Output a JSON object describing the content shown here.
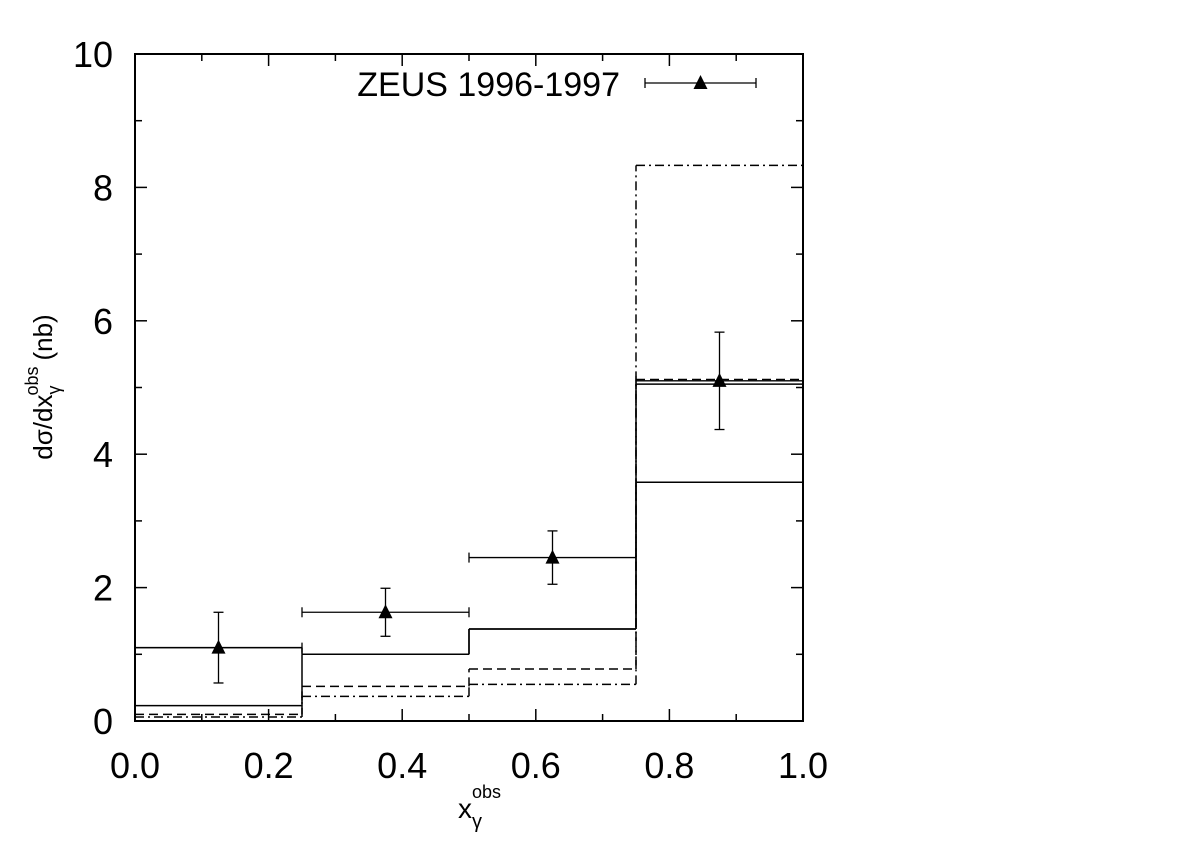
{
  "chart_data": {
    "type": "scatter",
    "x_label": {
      "main": "x",
      "sub": "γ",
      "sup": "obs"
    },
    "y_label": {
      "main": "dσ/dx",
      "sub": "γ",
      "sup": "obs",
      "unit": "(nb)"
    },
    "xlim": [
      0,
      1
    ],
    "ylim": [
      0,
      10
    ],
    "xticks": [
      {
        "value": 0,
        "label": "0.0"
      },
      {
        "value": 0.2,
        "label": "0.2"
      },
      {
        "value": 0.4,
        "label": "0.4"
      },
      {
        "value": 0.6,
        "label": "0.6"
      },
      {
        "value": 0.8,
        "label": "0.8"
      },
      {
        "value": 1,
        "label": "1.0"
      }
    ],
    "xminor": [
      0.1,
      0.3,
      0.5,
      0.7,
      0.9
    ],
    "yticks": [
      0,
      2,
      4,
      6,
      8,
      10
    ],
    "yminor": [
      1,
      3,
      5,
      7,
      9
    ],
    "legend": "top-right",
    "x": [
      0.125,
      0.375,
      0.625,
      0.875
    ],
    "series": [
      {
        "name": "ZEUS 1996-1997",
        "color": "#000000",
        "marker": "triangle",
        "values": [
          1.1,
          1.63,
          2.45,
          5.1
        ],
        "yerr": [
          0.53,
          0.36,
          0.4,
          0.73
        ],
        "xerr": [
          0.125,
          0.125,
          0.125,
          0.125
        ]
      }
    ],
    "bins": [
      0,
      0.25,
      0.5,
      0.75,
      1
    ],
    "histograms": [
      {
        "color": "#000000",
        "dash": "solid",
        "values": [
          1.1,
          1.0,
          1.38,
          3.58
        ]
      },
      {
        "color": "#000000",
        "dash": "solid",
        "values": [
          0.23,
          1.0,
          1.38,
          5.05
        ]
      },
      {
        "color": "#000000",
        "dash": "dashed",
        "values": [
          0.1,
          0.52,
          0.78,
          5.12
        ]
      },
      {
        "color": "#000000",
        "dash": "dashdot",
        "values": [
          0.06,
          0.37,
          0.55,
          8.33
        ]
      }
    ]
  }
}
